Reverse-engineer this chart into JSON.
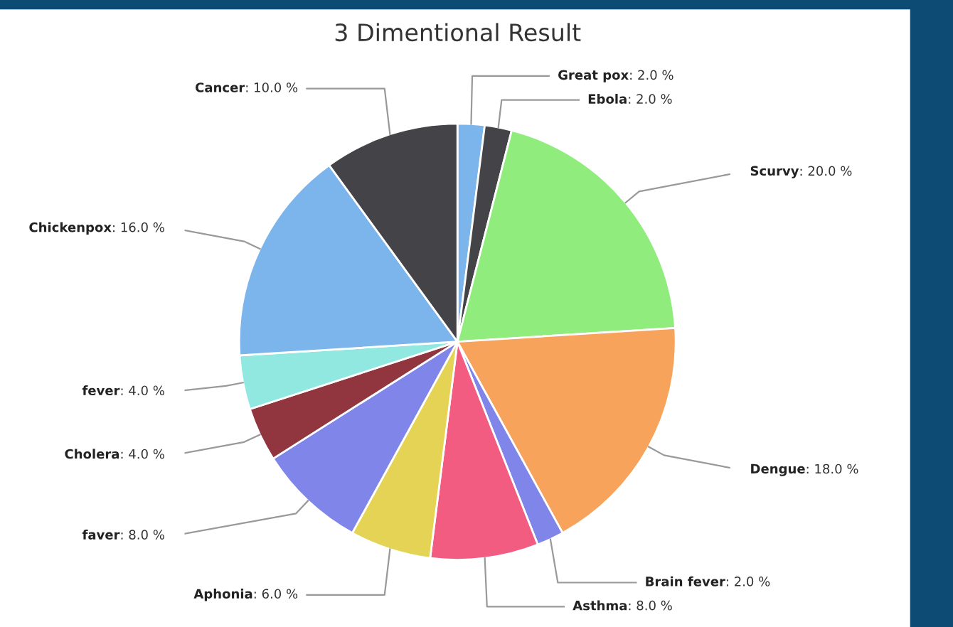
{
  "chart_data": {
    "type": "pie",
    "title": "3 Dimentional Result",
    "categories": [
      "Great pox",
      "Ebola",
      "Scurvy",
      "Dengue",
      "Brain fever",
      "Asthma",
      "Aphonia",
      "faver",
      "Cholera",
      "fever",
      "Chickenpox",
      "Cancer"
    ],
    "values": [
      2,
      2,
      20,
      18,
      2,
      8,
      6,
      8,
      4,
      4,
      16,
      10
    ],
    "value_labels": [
      ": 2.0 %",
      ": 2.0 %",
      ": 20.0 %",
      ": 18.0 %",
      ": 2.0 %",
      ": 8.0 %",
      ": 6.0 %",
      ": 8.0 %",
      ": 4.0 %",
      ": 4.0 %",
      ": 16.0 %",
      ": 10.0 %"
    ],
    "colors": [
      "#7cb5ec",
      "#434348",
      "#90ed7d",
      "#f7a35c",
      "#8085e9",
      "#f15c80",
      "#e4d354",
      "#8085e9",
      "#91353e",
      "#91e8e1",
      "#7cb5ec",
      "#434348"
    ],
    "legend": false
  }
}
